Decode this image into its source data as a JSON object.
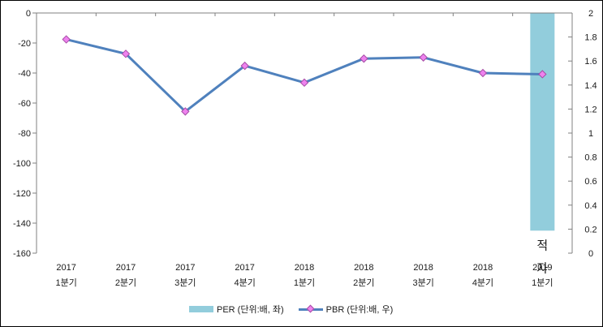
{
  "chart_data": {
    "type": "bar+line combo",
    "categories": [
      {
        "line1": "2017",
        "line2": "1분기"
      },
      {
        "line1": "2017",
        "line2": "2분기"
      },
      {
        "line1": "2017",
        "line2": "3분기"
      },
      {
        "line1": "2017",
        "line2": "4분기"
      },
      {
        "line1": "2018",
        "line2": "1분기"
      },
      {
        "line1": "2018",
        "line2": "2분기"
      },
      {
        "line1": "2018",
        "line2": "3분기"
      },
      {
        "line1": "2018",
        "line2": "4분기"
      },
      {
        "line1": "2019",
        "line2": "1분기"
      }
    ],
    "series": [
      {
        "name": "PER",
        "legend_label": "PER (단위:배, 좌)",
        "type": "bar",
        "axis": "left",
        "color": "#92CDDC",
        "values": [
          null,
          null,
          null,
          null,
          null,
          null,
          null,
          null,
          -145
        ],
        "annotation": "적자"
      },
      {
        "name": "PBR",
        "legend_label": "PBR (단위:배, 우)",
        "type": "line",
        "axis": "right",
        "color": "#4F81BD",
        "marker_fill": "#EE82EE",
        "marker_stroke": "#A64DA6",
        "values": [
          1.78,
          1.66,
          1.18,
          1.56,
          1.42,
          1.62,
          1.63,
          1.5,
          1.49
        ]
      }
    ],
    "left_axis": {
      "min": -160,
      "max": 0,
      "step": 20,
      "tick_labels": [
        "0",
        "-20",
        "-40",
        "-60",
        "-80",
        "-100",
        "-120",
        "-140",
        "-160"
      ]
    },
    "right_axis": {
      "min": 0,
      "max": 2,
      "step": 0.2,
      "tick_labels": [
        "2",
        "1.8",
        "1.6",
        "1.4",
        "1.2",
        "1",
        "0.8",
        "0.6",
        "0.4",
        "0.2",
        "0"
      ]
    },
    "deficit_label": "적자",
    "legend_position": "bottom-center",
    "grid": "off",
    "colors": {
      "axis": "#808080",
      "text": "#1a1a1a",
      "background": "#ffffff",
      "frame_border": "#000000"
    }
  }
}
